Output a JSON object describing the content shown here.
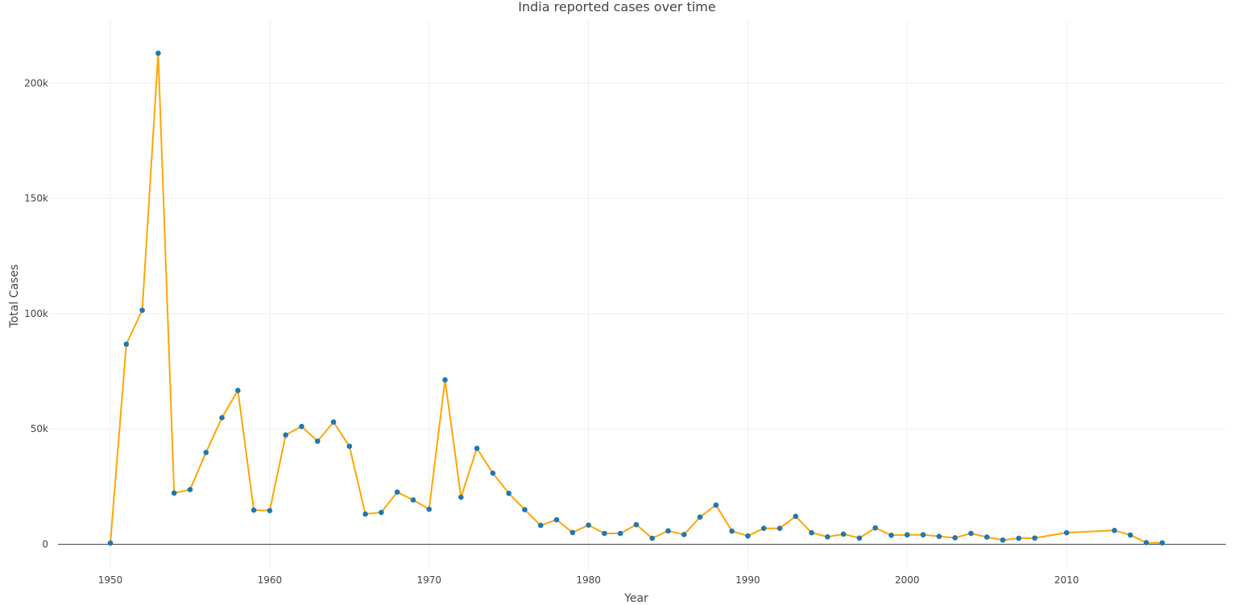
{
  "chart_data": {
    "type": "line",
    "title": "India reported cases over time",
    "xlabel": "Year",
    "ylabel": "Total Cases",
    "xlim": [
      1945.5,
      2020
    ],
    "ylim": [
      -11000,
      227000
    ],
    "x_ticks": [
      1950,
      1960,
      1970,
      1980,
      1990,
      2000,
      2010
    ],
    "x_tick_labels": [
      "1950",
      "1960",
      "1970",
      "1980",
      "1990",
      "2000",
      "2010"
    ],
    "y_ticks": [
      0,
      50000,
      100000,
      150000,
      200000
    ],
    "y_tick_labels": [
      "0",
      "50k",
      "100k",
      "150k",
      "200k"
    ],
    "grid": true,
    "colors": {
      "line": "#FFA500",
      "marker": "#1F77B4",
      "grid": "#eeeeee",
      "zeroline": "#444444"
    },
    "series": [
      {
        "x": [
          1950,
          1951,
          1952,
          1953,
          1954,
          1955,
          1956,
          1957,
          1958,
          1959,
          1960,
          1961,
          1962,
          1963,
          1964,
          1965,
          1966,
          1967,
          1968,
          1969,
          1970,
          1971,
          1972,
          1973,
          1974,
          1975,
          1976,
          1977,
          1978,
          1979,
          1980,
          1981,
          1982,
          1983,
          1984,
          1985,
          1986,
          1987,
          1988,
          1989,
          1990,
          1991,
          1992,
          1993,
          1994,
          1995,
          1996,
          1997,
          1998,
          1999,
          2000,
          2001,
          2002,
          2003,
          2004,
          2005,
          2006,
          2007,
          2008,
          2010,
          2013,
          2014,
          2015,
          2016
        ],
        "y": [
          500,
          86800,
          101500,
          213000,
          22200,
          23700,
          39800,
          54900,
          66700,
          14800,
          14600,
          47400,
          51100,
          44700,
          53000,
          42500,
          13100,
          13800,
          22600,
          19200,
          15200,
          71300,
          20400,
          41600,
          30800,
          22100,
          15000,
          8200,
          10600,
          5100,
          8300,
          4700,
          4700,
          8500,
          2600,
          5800,
          4200,
          11800,
          17000,
          5700,
          3600,
          6900,
          6900,
          12100,
          5000,
          3200,
          4400,
          2700,
          7100,
          3900,
          4100,
          4100,
          3400,
          2800,
          4700,
          3100,
          1800,
          2600,
          2700,
          5000,
          6000,
          4000,
          700,
          600
        ]
      }
    ]
  }
}
